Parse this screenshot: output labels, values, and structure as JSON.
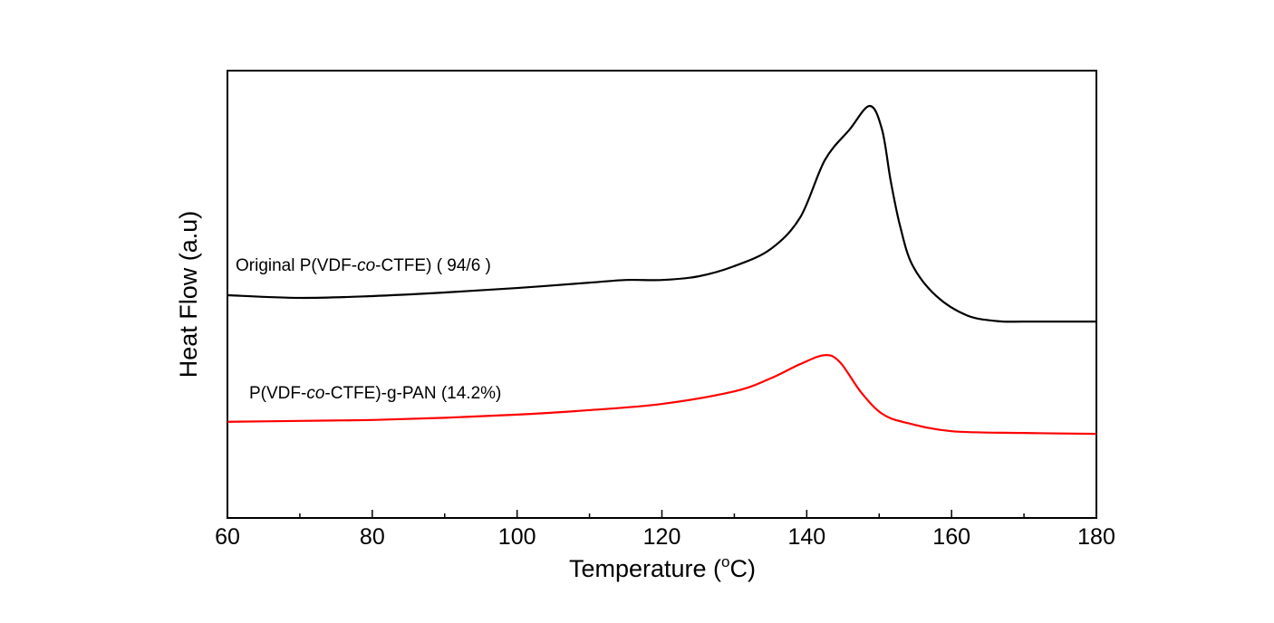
{
  "chart_data": {
    "type": "line",
    "title": "",
    "xlabel": "Temperature (",
    "xlabel_unit_sup": "o",
    "xlabel_unit": "C)",
    "ylabel": "Heat Flow (a.u)",
    "xlim": [
      60,
      180
    ],
    "ylim": [
      0,
      100
    ],
    "x_ticks": [
      60,
      80,
      100,
      120,
      140,
      160,
      180
    ],
    "x_tick_labels": [
      "60",
      "80",
      "100",
      "120",
      "140",
      "160",
      "180"
    ],
    "x_minor_step": 10,
    "y_tick_labels_shown": false,
    "grid": false,
    "legend": "none",
    "series": [
      {
        "name": "Original P(VDF-co-CTFE) ( 94/6 )",
        "color": "#000000",
        "x": [
          60,
          70,
          80,
          90,
          100,
          110,
          115,
          120,
          125,
          130,
          135,
          139.1,
          142.5,
          145.9,
          148.7,
          150.4,
          151.6,
          152.9,
          154.6,
          157.9,
          162.1,
          166.3,
          170,
          175,
          180
        ],
        "y": [
          49.8,
          49.2,
          49.6,
          50.4,
          51.4,
          52.6,
          53.2,
          53.2,
          54.0,
          56.3,
          60.1,
          67.2,
          80.0,
          86.8,
          92.1,
          86.8,
          75.3,
          65.2,
          56.5,
          49.6,
          45.3,
          44.0,
          43.9,
          43.9,
          43.9
        ]
      },
      {
        "name": "P(VDF-co-CTFE)-g-PAN (14.2%)",
        "color": "#ff0000",
        "x": [
          60,
          70,
          80,
          90,
          100,
          110,
          120,
          130,
          135,
          139.1,
          142.5,
          144.6,
          147.5,
          150.4,
          153.7,
          160,
          170,
          180
        ],
        "y": [
          21.5,
          21.7,
          21.9,
          22.4,
          23.1,
          24.1,
          25.5,
          28.3,
          31.2,
          34.4,
          36.4,
          34.8,
          28.1,
          23.3,
          21.3,
          19.4,
          19.0,
          18.8
        ]
      }
    ],
    "annotations": [
      {
        "pre": "Original P(VDF-",
        "italic": "co",
        "post": "-CTFE) ( 94/6 )"
      },
      {
        "pre": "P(VDF-",
        "italic": "co",
        "post": "-CTFE)-g-PAN (14.2%)"
      }
    ]
  }
}
